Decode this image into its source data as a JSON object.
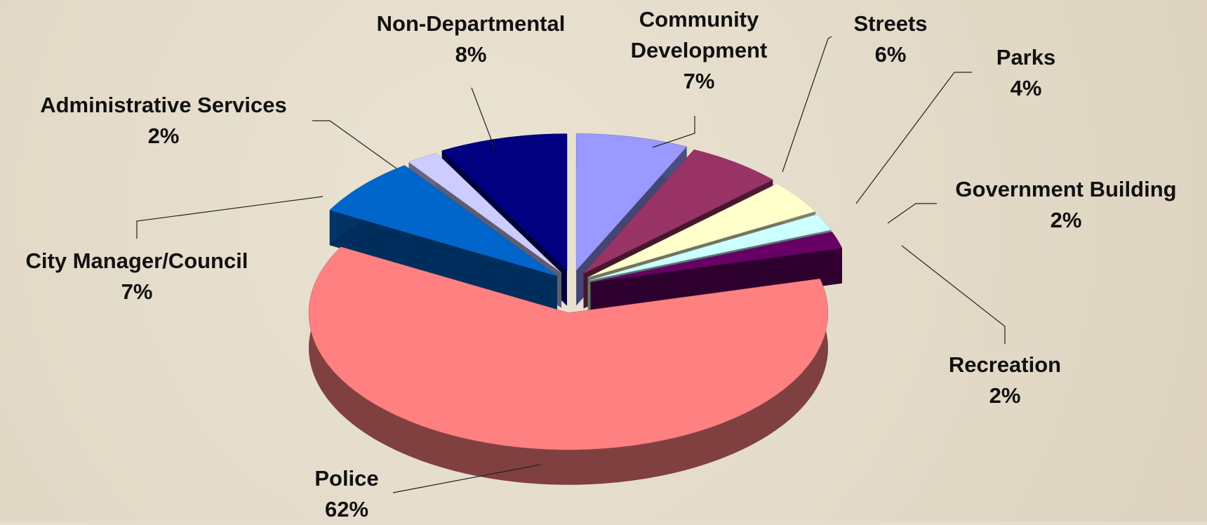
{
  "chart_data": {
    "type": "pie",
    "categories": [
      "Community Development",
      "Streets",
      "Parks",
      "Government Building",
      "Recreation",
      "Police",
      "City Manager/Council",
      "Administrative Services",
      "Non-Departmental"
    ],
    "values": [
      7,
      6,
      4,
      2,
      2,
      62,
      7,
      2,
      8
    ],
    "value_labels": [
      "7%",
      "6%",
      "4%",
      "2%",
      "2%",
      "62%",
      "7%",
      "2%",
      "8%"
    ],
    "colors": [
      "#9999ff",
      "#993366",
      "#ffffcc",
      "#ccffff",
      "#660066",
      "#ff8080",
      "#0066cc",
      "#ccccff",
      "#000080"
    ]
  }
}
